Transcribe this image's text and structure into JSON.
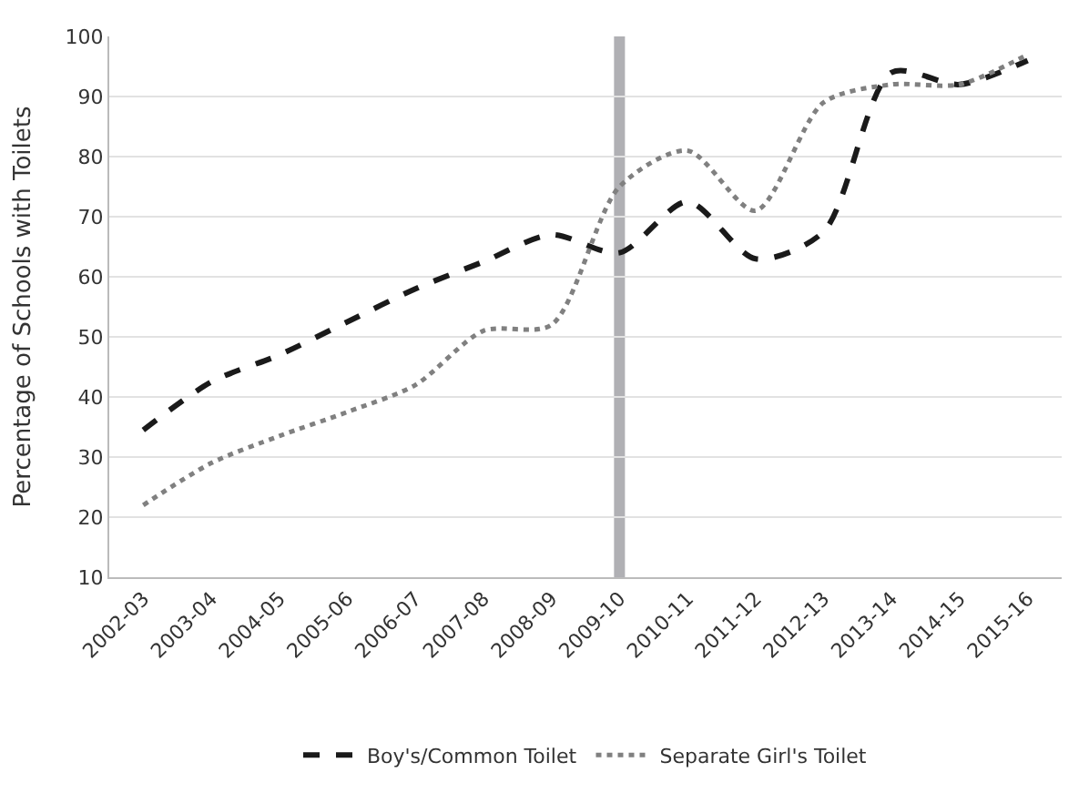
{
  "chart_data": {
    "type": "line",
    "ylabel": "Percentage of Schools with Toilets",
    "categories": [
      "2002-03",
      "2003-04",
      "2004-05",
      "2005-06",
      "2006-07",
      "2007-08",
      "2008-09",
      "2009-10",
      "2010-11",
      "2011-12",
      "2012-13",
      "2013-14",
      "2014-15",
      "2015-16"
    ],
    "series": [
      {
        "name": "Boy's/Common Toilet",
        "color": "#1a1a1a",
        "line_style": "dashed",
        "values": [
          34.5,
          42.5,
          47,
          52.5,
          58,
          62.5,
          67,
          64,
          72.5,
          63,
          67.5,
          94,
          92,
          96
        ]
      },
      {
        "name": "Separate Girl's Toilet",
        "color": "#808080",
        "line_style": "dotted",
        "values": [
          22,
          29,
          33.5,
          37.5,
          42,
          51,
          52,
          75,
          81,
          71,
          89,
          92,
          92,
          97
        ]
      }
    ],
    "ylim": [
      10,
      100
    ],
    "yticks": [
      10,
      20,
      30,
      40,
      50,
      60,
      70,
      80,
      90,
      100
    ],
    "grid": "y",
    "legend": "bottom",
    "marker": "none",
    "ref_lines": [
      {
        "axis": "x",
        "value": "2009-10",
        "color": "#b0b0b4"
      }
    ]
  }
}
